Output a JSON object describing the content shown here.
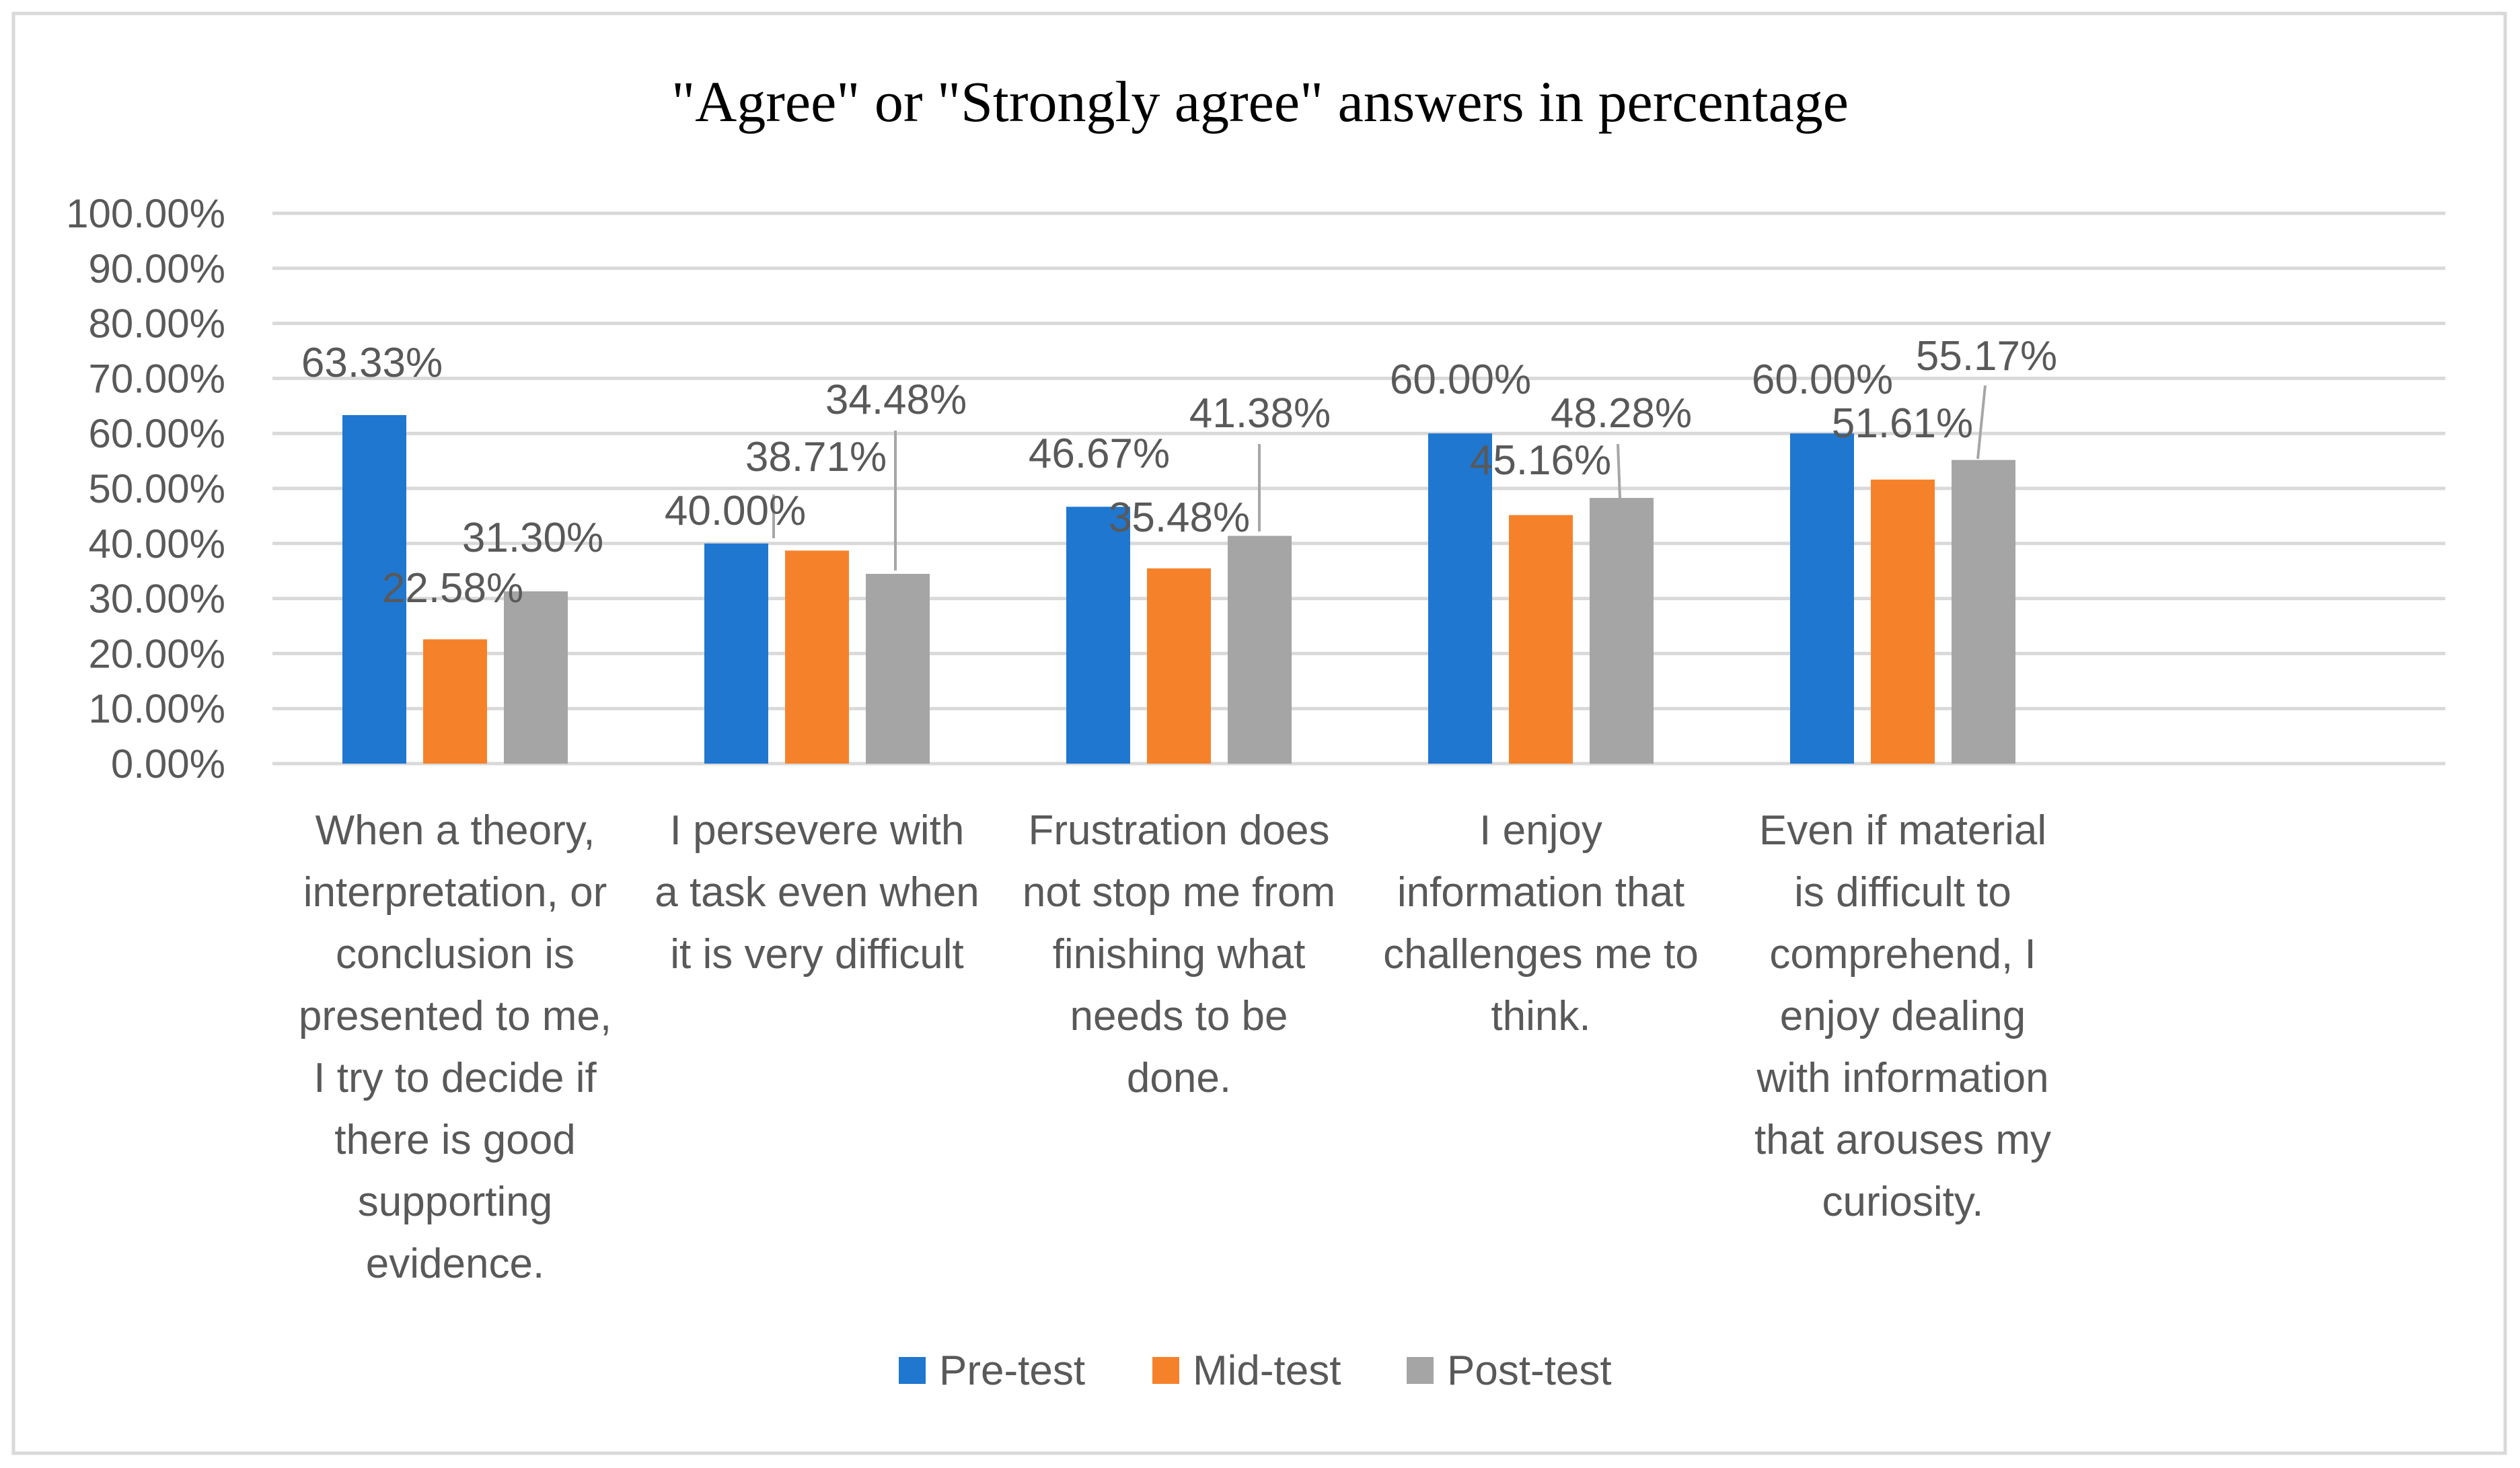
{
  "chart_data": {
    "type": "bar",
    "title": "\"Agree\" or \"Strongly agree\" answers in percentage",
    "xlabel": "",
    "ylabel": "",
    "ylim": [
      0,
      100
    ],
    "yticks": [
      "0.00%",
      "10.00%",
      "20.00%",
      "30.00%",
      "40.00%",
      "50.00%",
      "60.00%",
      "70.00%",
      "80.00%",
      "90.00%",
      "100.00%"
    ],
    "grid": true,
    "legend_position": "bottom",
    "categories": [
      "When a theory, interpretation, or conclusion is presented to me, I try to decide if there is good supporting evidence.",
      "I persevere with a task even when it is very difficult",
      "Frustration does not stop me from finishing what needs to be done.",
      "I enjoy information that challenges me to think.",
      "Even if material is difficult to comprehend, I enjoy dealing with information that arouses my curiosity."
    ],
    "category_lines": [
      [
        "When a theory,",
        "interpretation, or",
        "conclusion is",
        "presented to me,",
        "I try to decide if",
        "there is good",
        "supporting",
        "evidence."
      ],
      [
        "I persevere with",
        "a task even when",
        "it is very difficult"
      ],
      [
        "Frustration does",
        "not stop me from",
        "finishing what",
        "needs to be",
        "done."
      ],
      [
        "I enjoy",
        "information that",
        "challenges me to",
        "think."
      ],
      [
        "Even if material",
        "is difficult to",
        "comprehend, I",
        "enjoy dealing",
        "with information",
        "that arouses my",
        "curiosity."
      ]
    ],
    "series": [
      {
        "name": "Pre-test",
        "color": "#1f77d0",
        "values": [
          63.33,
          40.0,
          46.67,
          60.0,
          60.0
        ],
        "labels": [
          "63.33%",
          "40.00%",
          "46.67%",
          "60.00%",
          "60.00%"
        ]
      },
      {
        "name": "Mid-test",
        "color": "#f5822a",
        "values": [
          22.58,
          38.71,
          35.48,
          45.16,
          51.61
        ],
        "labels": [
          "22.58%",
          "38.71%",
          "35.48%",
          "45.16%",
          "51.61%"
        ]
      },
      {
        "name": "Post-test",
        "color": "#a5a5a5",
        "values": [
          31.3,
          34.48,
          41.38,
          48.28,
          55.17
        ],
        "labels": [
          "31.30%",
          "34.48%",
          "41.38%",
          "48.28%",
          "55.17%"
        ]
      }
    ]
  }
}
